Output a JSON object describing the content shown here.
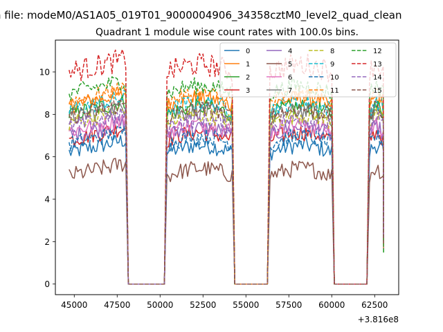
{
  "chart_data": {
    "type": "line",
    "suptitle": "n file: modeM0/AS1A05_019T01_9000004906_34358cztM0_level2_quad_clean",
    "title": "Quadrant 1 module wise count rates with 100.0s bins.",
    "xlabel": "",
    "ylabel": "",
    "x_offset_label": "+3.816e8",
    "xlim": [
      43900,
      63900
    ],
    "ylim": [
      -0.5,
      11.5
    ],
    "xticks": [
      45000,
      47500,
      50000,
      52500,
      55000,
      57500,
      60000,
      62500
    ],
    "xtick_labels": [
      "45000",
      "47500",
      "50000",
      "52500",
      "55000",
      "57500",
      "60000",
      "62500"
    ],
    "yticks": [
      0,
      2,
      4,
      6,
      8,
      10
    ],
    "ytick_labels": [
      "0",
      "2",
      "4",
      "6",
      "8",
      "10"
    ],
    "legend_position": "top-right",
    "segments_start": [
      44700,
      50400,
      56400,
      62200
    ],
    "segments_end": [
      48000,
      54200,
      60000,
      63000
    ],
    "gap_value": 0,
    "bin_seconds": 100,
    "series": [
      {
        "name": "0",
        "color": "#1f77b4",
        "dash": false,
        "level": 6.2
      },
      {
        "name": "1",
        "color": "#ff7f0e",
        "dash": false,
        "level": 8.4
      },
      {
        "name": "2",
        "color": "#2ca02c",
        "dash": false,
        "level": 8.0
      },
      {
        "name": "3",
        "color": "#d62728",
        "dash": false,
        "level": 6.8
      },
      {
        "name": "4",
        "color": "#9467bd",
        "dash": false,
        "level": 7.0
      },
      {
        "name": "5",
        "color": "#8c564b",
        "dash": false,
        "level": 5.1
      },
      {
        "name": "6",
        "color": "#e377c2",
        "dash": false,
        "level": 7.2
      },
      {
        "name": "7",
        "color": "#7f7f7f",
        "dash": false,
        "level": 7.8
      },
      {
        "name": "8",
        "color": "#bcbd22",
        "dash": true,
        "level": 7.6
      },
      {
        "name": "9",
        "color": "#17becf",
        "dash": true,
        "level": 8.2
      },
      {
        "name": "10",
        "color": "#1f77b4",
        "dash": true,
        "level": 6.6
      },
      {
        "name": "11",
        "color": "#ff7f0e",
        "dash": true,
        "level": 8.6
      },
      {
        "name": "12",
        "color": "#2ca02c",
        "dash": true,
        "level": 9.0
      },
      {
        "name": "13",
        "color": "#d62728",
        "dash": true,
        "level": 10.0
      },
      {
        "name": "14",
        "color": "#9467bd",
        "dash": true,
        "level": 7.4
      },
      {
        "name": "15",
        "color": "#8c564b",
        "dash": true,
        "level": 7.9
      }
    ]
  }
}
